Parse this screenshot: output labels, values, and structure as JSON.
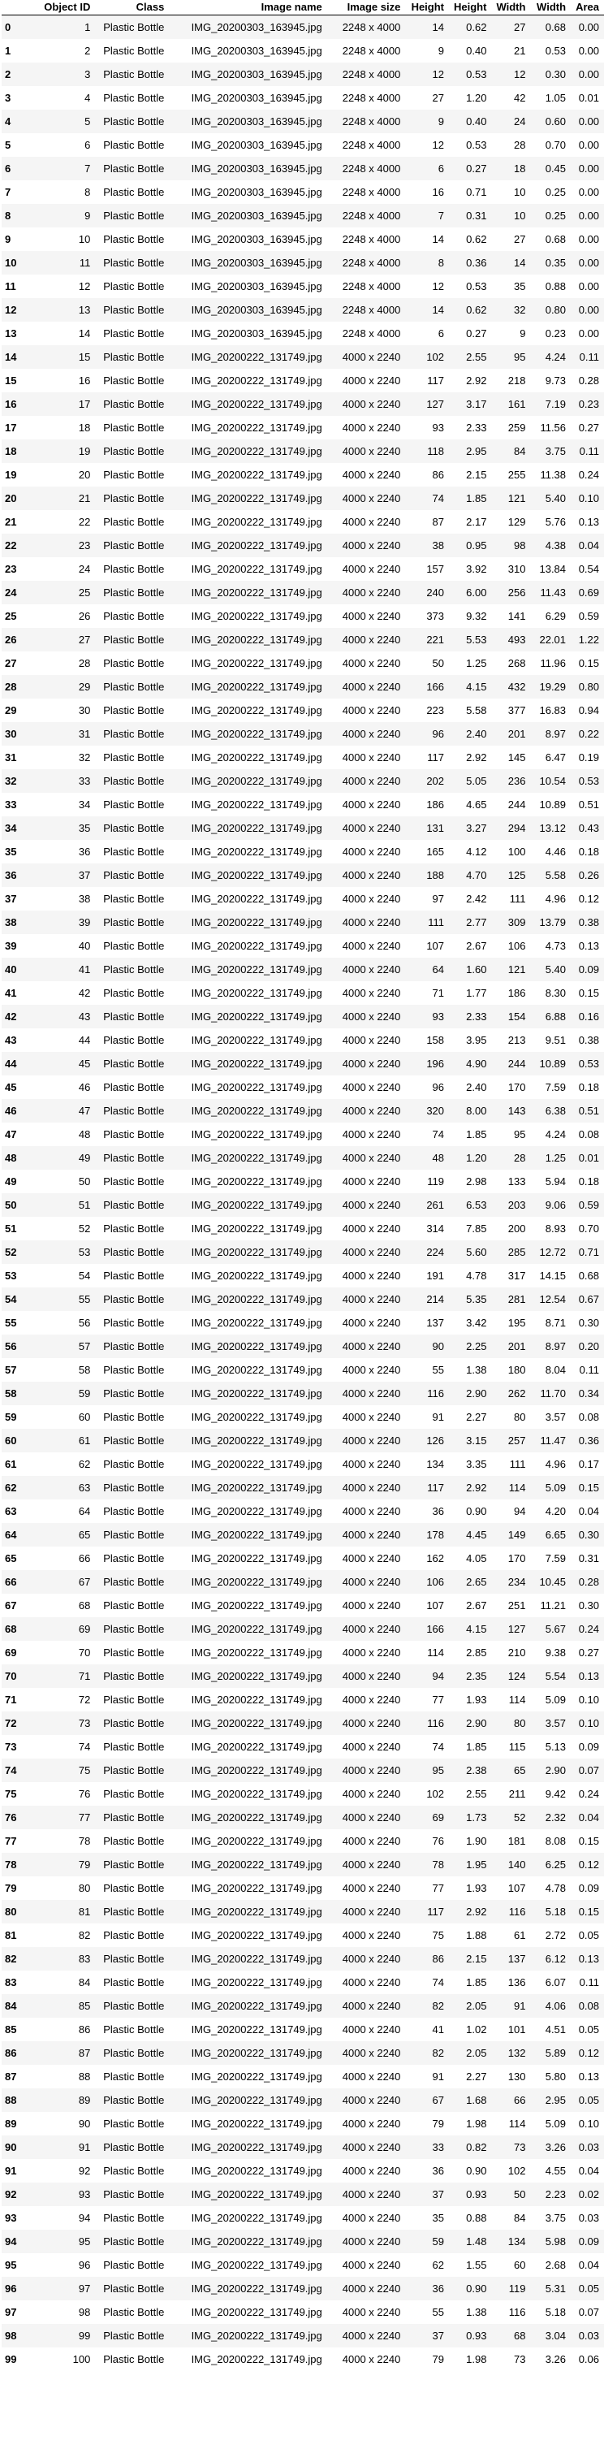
{
  "headers": [
    "",
    "Object ID",
    "Class",
    "Image name",
    "Image size",
    "Height",
    "Height",
    "Width",
    "Width",
    "Area"
  ],
  "rows": [
    [
      "0",
      "1",
      "Plastic Bottle",
      "IMG_20200303_163945.jpg",
      "2248 x 4000",
      "14",
      "0.62",
      "27",
      "0.68",
      "0.00"
    ],
    [
      "1",
      "2",
      "Plastic Bottle",
      "IMG_20200303_163945.jpg",
      "2248 x 4000",
      "9",
      "0.40",
      "21",
      "0.53",
      "0.00"
    ],
    [
      "2",
      "3",
      "Plastic Bottle",
      "IMG_20200303_163945.jpg",
      "2248 x 4000",
      "12",
      "0.53",
      "12",
      "0.30",
      "0.00"
    ],
    [
      "3",
      "4",
      "Plastic Bottle",
      "IMG_20200303_163945.jpg",
      "2248 x 4000",
      "27",
      "1.20",
      "42",
      "1.05",
      "0.01"
    ],
    [
      "4",
      "5",
      "Plastic Bottle",
      "IMG_20200303_163945.jpg",
      "2248 x 4000",
      "9",
      "0.40",
      "24",
      "0.60",
      "0.00"
    ],
    [
      "5",
      "6",
      "Plastic Bottle",
      "IMG_20200303_163945.jpg",
      "2248 x 4000",
      "12",
      "0.53",
      "28",
      "0.70",
      "0.00"
    ],
    [
      "6",
      "7",
      "Plastic Bottle",
      "IMG_20200303_163945.jpg",
      "2248 x 4000",
      "6",
      "0.27",
      "18",
      "0.45",
      "0.00"
    ],
    [
      "7",
      "8",
      "Plastic Bottle",
      "IMG_20200303_163945.jpg",
      "2248 x 4000",
      "16",
      "0.71",
      "10",
      "0.25",
      "0.00"
    ],
    [
      "8",
      "9",
      "Plastic Bottle",
      "IMG_20200303_163945.jpg",
      "2248 x 4000",
      "7",
      "0.31",
      "10",
      "0.25",
      "0.00"
    ],
    [
      "9",
      "10",
      "Plastic Bottle",
      "IMG_20200303_163945.jpg",
      "2248 x 4000",
      "14",
      "0.62",
      "27",
      "0.68",
      "0.00"
    ],
    [
      "10",
      "11",
      "Plastic Bottle",
      "IMG_20200303_163945.jpg",
      "2248 x 4000",
      "8",
      "0.36",
      "14",
      "0.35",
      "0.00"
    ],
    [
      "11",
      "12",
      "Plastic Bottle",
      "IMG_20200303_163945.jpg",
      "2248 x 4000",
      "12",
      "0.53",
      "35",
      "0.88",
      "0.00"
    ],
    [
      "12",
      "13",
      "Plastic Bottle",
      "IMG_20200303_163945.jpg",
      "2248 x 4000",
      "14",
      "0.62",
      "32",
      "0.80",
      "0.00"
    ],
    [
      "13",
      "14",
      "Plastic Bottle",
      "IMG_20200303_163945.jpg",
      "2248 x 4000",
      "6",
      "0.27",
      "9",
      "0.23",
      "0.00"
    ],
    [
      "14",
      "15",
      "Plastic Bottle",
      "IMG_20200222_131749.jpg",
      "4000 x 2240",
      "102",
      "2.55",
      "95",
      "4.24",
      "0.11"
    ],
    [
      "15",
      "16",
      "Plastic Bottle",
      "IMG_20200222_131749.jpg",
      "4000 x 2240",
      "117",
      "2.92",
      "218",
      "9.73",
      "0.28"
    ],
    [
      "16",
      "17",
      "Plastic Bottle",
      "IMG_20200222_131749.jpg",
      "4000 x 2240",
      "127",
      "3.17",
      "161",
      "7.19",
      "0.23"
    ],
    [
      "17",
      "18",
      "Plastic Bottle",
      "IMG_20200222_131749.jpg",
      "4000 x 2240",
      "93",
      "2.33",
      "259",
      "11.56",
      "0.27"
    ],
    [
      "18",
      "19",
      "Plastic Bottle",
      "IMG_20200222_131749.jpg",
      "4000 x 2240",
      "118",
      "2.95",
      "84",
      "3.75",
      "0.11"
    ],
    [
      "19",
      "20",
      "Plastic Bottle",
      "IMG_20200222_131749.jpg",
      "4000 x 2240",
      "86",
      "2.15",
      "255",
      "11.38",
      "0.24"
    ],
    [
      "20",
      "21",
      "Plastic Bottle",
      "IMG_20200222_131749.jpg",
      "4000 x 2240",
      "74",
      "1.85",
      "121",
      "5.40",
      "0.10"
    ],
    [
      "21",
      "22",
      "Plastic Bottle",
      "IMG_20200222_131749.jpg",
      "4000 x 2240",
      "87",
      "2.17",
      "129",
      "5.76",
      "0.13"
    ],
    [
      "22",
      "23",
      "Plastic Bottle",
      "IMG_20200222_131749.jpg",
      "4000 x 2240",
      "38",
      "0.95",
      "98",
      "4.38",
      "0.04"
    ],
    [
      "23",
      "24",
      "Plastic Bottle",
      "IMG_20200222_131749.jpg",
      "4000 x 2240",
      "157",
      "3.92",
      "310",
      "13.84",
      "0.54"
    ],
    [
      "24",
      "25",
      "Plastic Bottle",
      "IMG_20200222_131749.jpg",
      "4000 x 2240",
      "240",
      "6.00",
      "256",
      "11.43",
      "0.69"
    ],
    [
      "25",
      "26",
      "Plastic Bottle",
      "IMG_20200222_131749.jpg",
      "4000 x 2240",
      "373",
      "9.32",
      "141",
      "6.29",
      "0.59"
    ],
    [
      "26",
      "27",
      "Plastic Bottle",
      "IMG_20200222_131749.jpg",
      "4000 x 2240",
      "221",
      "5.53",
      "493",
      "22.01",
      "1.22"
    ],
    [
      "27",
      "28",
      "Plastic Bottle",
      "IMG_20200222_131749.jpg",
      "4000 x 2240",
      "50",
      "1.25",
      "268",
      "11.96",
      "0.15"
    ],
    [
      "28",
      "29",
      "Plastic Bottle",
      "IMG_20200222_131749.jpg",
      "4000 x 2240",
      "166",
      "4.15",
      "432",
      "19.29",
      "0.80"
    ],
    [
      "29",
      "30",
      "Plastic Bottle",
      "IMG_20200222_131749.jpg",
      "4000 x 2240",
      "223",
      "5.58",
      "377",
      "16.83",
      "0.94"
    ],
    [
      "30",
      "31",
      "Plastic Bottle",
      "IMG_20200222_131749.jpg",
      "4000 x 2240",
      "96",
      "2.40",
      "201",
      "8.97",
      "0.22"
    ],
    [
      "31",
      "32",
      "Plastic Bottle",
      "IMG_20200222_131749.jpg",
      "4000 x 2240",
      "117",
      "2.92",
      "145",
      "6.47",
      "0.19"
    ],
    [
      "32",
      "33",
      "Plastic Bottle",
      "IMG_20200222_131749.jpg",
      "4000 x 2240",
      "202",
      "5.05",
      "236",
      "10.54",
      "0.53"
    ],
    [
      "33",
      "34",
      "Plastic Bottle",
      "IMG_20200222_131749.jpg",
      "4000 x 2240",
      "186",
      "4.65",
      "244",
      "10.89",
      "0.51"
    ],
    [
      "34",
      "35",
      "Plastic Bottle",
      "IMG_20200222_131749.jpg",
      "4000 x 2240",
      "131",
      "3.27",
      "294",
      "13.12",
      "0.43"
    ],
    [
      "35",
      "36",
      "Plastic Bottle",
      "IMG_20200222_131749.jpg",
      "4000 x 2240",
      "165",
      "4.12",
      "100",
      "4.46",
      "0.18"
    ],
    [
      "36",
      "37",
      "Plastic Bottle",
      "IMG_20200222_131749.jpg",
      "4000 x 2240",
      "188",
      "4.70",
      "125",
      "5.58",
      "0.26"
    ],
    [
      "37",
      "38",
      "Plastic Bottle",
      "IMG_20200222_131749.jpg",
      "4000 x 2240",
      "97",
      "2.42",
      "111",
      "4.96",
      "0.12"
    ],
    [
      "38",
      "39",
      "Plastic Bottle",
      "IMG_20200222_131749.jpg",
      "4000 x 2240",
      "111",
      "2.77",
      "309",
      "13.79",
      "0.38"
    ],
    [
      "39",
      "40",
      "Plastic Bottle",
      "IMG_20200222_131749.jpg",
      "4000 x 2240",
      "107",
      "2.67",
      "106",
      "4.73",
      "0.13"
    ],
    [
      "40",
      "41",
      "Plastic Bottle",
      "IMG_20200222_131749.jpg",
      "4000 x 2240",
      "64",
      "1.60",
      "121",
      "5.40",
      "0.09"
    ],
    [
      "41",
      "42",
      "Plastic Bottle",
      "IMG_20200222_131749.jpg",
      "4000 x 2240",
      "71",
      "1.77",
      "186",
      "8.30",
      "0.15"
    ],
    [
      "42",
      "43",
      "Plastic Bottle",
      "IMG_20200222_131749.jpg",
      "4000 x 2240",
      "93",
      "2.33",
      "154",
      "6.88",
      "0.16"
    ],
    [
      "43",
      "44",
      "Plastic Bottle",
      "IMG_20200222_131749.jpg",
      "4000 x 2240",
      "158",
      "3.95",
      "213",
      "9.51",
      "0.38"
    ],
    [
      "44",
      "45",
      "Plastic Bottle",
      "IMG_20200222_131749.jpg",
      "4000 x 2240",
      "196",
      "4.90",
      "244",
      "10.89",
      "0.53"
    ],
    [
      "45",
      "46",
      "Plastic Bottle",
      "IMG_20200222_131749.jpg",
      "4000 x 2240",
      "96",
      "2.40",
      "170",
      "7.59",
      "0.18"
    ],
    [
      "46",
      "47",
      "Plastic Bottle",
      "IMG_20200222_131749.jpg",
      "4000 x 2240",
      "320",
      "8.00",
      "143",
      "6.38",
      "0.51"
    ],
    [
      "47",
      "48",
      "Plastic Bottle",
      "IMG_20200222_131749.jpg",
      "4000 x 2240",
      "74",
      "1.85",
      "95",
      "4.24",
      "0.08"
    ],
    [
      "48",
      "49",
      "Plastic Bottle",
      "IMG_20200222_131749.jpg",
      "4000 x 2240",
      "48",
      "1.20",
      "28",
      "1.25",
      "0.01"
    ],
    [
      "49",
      "50",
      "Plastic Bottle",
      "IMG_20200222_131749.jpg",
      "4000 x 2240",
      "119",
      "2.98",
      "133",
      "5.94",
      "0.18"
    ],
    [
      "50",
      "51",
      "Plastic Bottle",
      "IMG_20200222_131749.jpg",
      "4000 x 2240",
      "261",
      "6.53",
      "203",
      "9.06",
      "0.59"
    ],
    [
      "51",
      "52",
      "Plastic Bottle",
      "IMG_20200222_131749.jpg",
      "4000 x 2240",
      "314",
      "7.85",
      "200",
      "8.93",
      "0.70"
    ],
    [
      "52",
      "53",
      "Plastic Bottle",
      "IMG_20200222_131749.jpg",
      "4000 x 2240",
      "224",
      "5.60",
      "285",
      "12.72",
      "0.71"
    ],
    [
      "53",
      "54",
      "Plastic Bottle",
      "IMG_20200222_131749.jpg",
      "4000 x 2240",
      "191",
      "4.78",
      "317",
      "14.15",
      "0.68"
    ],
    [
      "54",
      "55",
      "Plastic Bottle",
      "IMG_20200222_131749.jpg",
      "4000 x 2240",
      "214",
      "5.35",
      "281",
      "12.54",
      "0.67"
    ],
    [
      "55",
      "56",
      "Plastic Bottle",
      "IMG_20200222_131749.jpg",
      "4000 x 2240",
      "137",
      "3.42",
      "195",
      "8.71",
      "0.30"
    ],
    [
      "56",
      "57",
      "Plastic Bottle",
      "IMG_20200222_131749.jpg",
      "4000 x 2240",
      "90",
      "2.25",
      "201",
      "8.97",
      "0.20"
    ],
    [
      "57",
      "58",
      "Plastic Bottle",
      "IMG_20200222_131749.jpg",
      "4000 x 2240",
      "55",
      "1.38",
      "180",
      "8.04",
      "0.11"
    ],
    [
      "58",
      "59",
      "Plastic Bottle",
      "IMG_20200222_131749.jpg",
      "4000 x 2240",
      "116",
      "2.90",
      "262",
      "11.70",
      "0.34"
    ],
    [
      "59",
      "60",
      "Plastic Bottle",
      "IMG_20200222_131749.jpg",
      "4000 x 2240",
      "91",
      "2.27",
      "80",
      "3.57",
      "0.08"
    ],
    [
      "60",
      "61",
      "Plastic Bottle",
      "IMG_20200222_131749.jpg",
      "4000 x 2240",
      "126",
      "3.15",
      "257",
      "11.47",
      "0.36"
    ],
    [
      "61",
      "62",
      "Plastic Bottle",
      "IMG_20200222_131749.jpg",
      "4000 x 2240",
      "134",
      "3.35",
      "111",
      "4.96",
      "0.17"
    ],
    [
      "62",
      "63",
      "Plastic Bottle",
      "IMG_20200222_131749.jpg",
      "4000 x 2240",
      "117",
      "2.92",
      "114",
      "5.09",
      "0.15"
    ],
    [
      "63",
      "64",
      "Plastic Bottle",
      "IMG_20200222_131749.jpg",
      "4000 x 2240",
      "36",
      "0.90",
      "94",
      "4.20",
      "0.04"
    ],
    [
      "64",
      "65",
      "Plastic Bottle",
      "IMG_20200222_131749.jpg",
      "4000 x 2240",
      "178",
      "4.45",
      "149",
      "6.65",
      "0.30"
    ],
    [
      "65",
      "66",
      "Plastic Bottle",
      "IMG_20200222_131749.jpg",
      "4000 x 2240",
      "162",
      "4.05",
      "170",
      "7.59",
      "0.31"
    ],
    [
      "66",
      "67",
      "Plastic Bottle",
      "IMG_20200222_131749.jpg",
      "4000 x 2240",
      "106",
      "2.65",
      "234",
      "10.45",
      "0.28"
    ],
    [
      "67",
      "68",
      "Plastic Bottle",
      "IMG_20200222_131749.jpg",
      "4000 x 2240",
      "107",
      "2.67",
      "251",
      "11.21",
      "0.30"
    ],
    [
      "68",
      "69",
      "Plastic Bottle",
      "IMG_20200222_131749.jpg",
      "4000 x 2240",
      "166",
      "4.15",
      "127",
      "5.67",
      "0.24"
    ],
    [
      "69",
      "70",
      "Plastic Bottle",
      "IMG_20200222_131749.jpg",
      "4000 x 2240",
      "114",
      "2.85",
      "210",
      "9.38",
      "0.27"
    ],
    [
      "70",
      "71",
      "Plastic Bottle",
      "IMG_20200222_131749.jpg",
      "4000 x 2240",
      "94",
      "2.35",
      "124",
      "5.54",
      "0.13"
    ],
    [
      "71",
      "72",
      "Plastic Bottle",
      "IMG_20200222_131749.jpg",
      "4000 x 2240",
      "77",
      "1.93",
      "114",
      "5.09",
      "0.10"
    ],
    [
      "72",
      "73",
      "Plastic Bottle",
      "IMG_20200222_131749.jpg",
      "4000 x 2240",
      "116",
      "2.90",
      "80",
      "3.57",
      "0.10"
    ],
    [
      "73",
      "74",
      "Plastic Bottle",
      "IMG_20200222_131749.jpg",
      "4000 x 2240",
      "74",
      "1.85",
      "115",
      "5.13",
      "0.09"
    ],
    [
      "74",
      "75",
      "Plastic Bottle",
      "IMG_20200222_131749.jpg",
      "4000 x 2240",
      "95",
      "2.38",
      "65",
      "2.90",
      "0.07"
    ],
    [
      "75",
      "76",
      "Plastic Bottle",
      "IMG_20200222_131749.jpg",
      "4000 x 2240",
      "102",
      "2.55",
      "211",
      "9.42",
      "0.24"
    ],
    [
      "76",
      "77",
      "Plastic Bottle",
      "IMG_20200222_131749.jpg",
      "4000 x 2240",
      "69",
      "1.73",
      "52",
      "2.32",
      "0.04"
    ],
    [
      "77",
      "78",
      "Plastic Bottle",
      "IMG_20200222_131749.jpg",
      "4000 x 2240",
      "76",
      "1.90",
      "181",
      "8.08",
      "0.15"
    ],
    [
      "78",
      "79",
      "Plastic Bottle",
      "IMG_20200222_131749.jpg",
      "4000 x 2240",
      "78",
      "1.95",
      "140",
      "6.25",
      "0.12"
    ],
    [
      "79",
      "80",
      "Plastic Bottle",
      "IMG_20200222_131749.jpg",
      "4000 x 2240",
      "77",
      "1.93",
      "107",
      "4.78",
      "0.09"
    ],
    [
      "80",
      "81",
      "Plastic Bottle",
      "IMG_20200222_131749.jpg",
      "4000 x 2240",
      "117",
      "2.92",
      "116",
      "5.18",
      "0.15"
    ],
    [
      "81",
      "82",
      "Plastic Bottle",
      "IMG_20200222_131749.jpg",
      "4000 x 2240",
      "75",
      "1.88",
      "61",
      "2.72",
      "0.05"
    ],
    [
      "82",
      "83",
      "Plastic Bottle",
      "IMG_20200222_131749.jpg",
      "4000 x 2240",
      "86",
      "2.15",
      "137",
      "6.12",
      "0.13"
    ],
    [
      "83",
      "84",
      "Plastic Bottle",
      "IMG_20200222_131749.jpg",
      "4000 x 2240",
      "74",
      "1.85",
      "136",
      "6.07",
      "0.11"
    ],
    [
      "84",
      "85",
      "Plastic Bottle",
      "IMG_20200222_131749.jpg",
      "4000 x 2240",
      "82",
      "2.05",
      "91",
      "4.06",
      "0.08"
    ],
    [
      "85",
      "86",
      "Plastic Bottle",
      "IMG_20200222_131749.jpg",
      "4000 x 2240",
      "41",
      "1.02",
      "101",
      "4.51",
      "0.05"
    ],
    [
      "86",
      "87",
      "Plastic Bottle",
      "IMG_20200222_131749.jpg",
      "4000 x 2240",
      "82",
      "2.05",
      "132",
      "5.89",
      "0.12"
    ],
    [
      "87",
      "88",
      "Plastic Bottle",
      "IMG_20200222_131749.jpg",
      "4000 x 2240",
      "91",
      "2.27",
      "130",
      "5.80",
      "0.13"
    ],
    [
      "88",
      "89",
      "Plastic Bottle",
      "IMG_20200222_131749.jpg",
      "4000 x 2240",
      "67",
      "1.68",
      "66",
      "2.95",
      "0.05"
    ],
    [
      "89",
      "90",
      "Plastic Bottle",
      "IMG_20200222_131749.jpg",
      "4000 x 2240",
      "79",
      "1.98",
      "114",
      "5.09",
      "0.10"
    ],
    [
      "90",
      "91",
      "Plastic Bottle",
      "IMG_20200222_131749.jpg",
      "4000 x 2240",
      "33",
      "0.82",
      "73",
      "3.26",
      "0.03"
    ],
    [
      "91",
      "92",
      "Plastic Bottle",
      "IMG_20200222_131749.jpg",
      "4000 x 2240",
      "36",
      "0.90",
      "102",
      "4.55",
      "0.04"
    ],
    [
      "92",
      "93",
      "Plastic Bottle",
      "IMG_20200222_131749.jpg",
      "4000 x 2240",
      "37",
      "0.93",
      "50",
      "2.23",
      "0.02"
    ],
    [
      "93",
      "94",
      "Plastic Bottle",
      "IMG_20200222_131749.jpg",
      "4000 x 2240",
      "35",
      "0.88",
      "84",
      "3.75",
      "0.03"
    ],
    [
      "94",
      "95",
      "Plastic Bottle",
      "IMG_20200222_131749.jpg",
      "4000 x 2240",
      "59",
      "1.48",
      "134",
      "5.98",
      "0.09"
    ],
    [
      "95",
      "96",
      "Plastic Bottle",
      "IMG_20200222_131749.jpg",
      "4000 x 2240",
      "62",
      "1.55",
      "60",
      "2.68",
      "0.04"
    ],
    [
      "96",
      "97",
      "Plastic Bottle",
      "IMG_20200222_131749.jpg",
      "4000 x 2240",
      "36",
      "0.90",
      "119",
      "5.31",
      "0.05"
    ],
    [
      "97",
      "98",
      "Plastic Bottle",
      "IMG_20200222_131749.jpg",
      "4000 x 2240",
      "55",
      "1.38",
      "116",
      "5.18",
      "0.07"
    ],
    [
      "98",
      "99",
      "Plastic Bottle",
      "IMG_20200222_131749.jpg",
      "4000 x 2240",
      "37",
      "0.93",
      "68",
      "3.04",
      "0.03"
    ],
    [
      "99",
      "100",
      "Plastic Bottle",
      "IMG_20200222_131749.jpg",
      "4000 x 2240",
      "79",
      "1.98",
      "73",
      "3.26",
      "0.06"
    ]
  ]
}
